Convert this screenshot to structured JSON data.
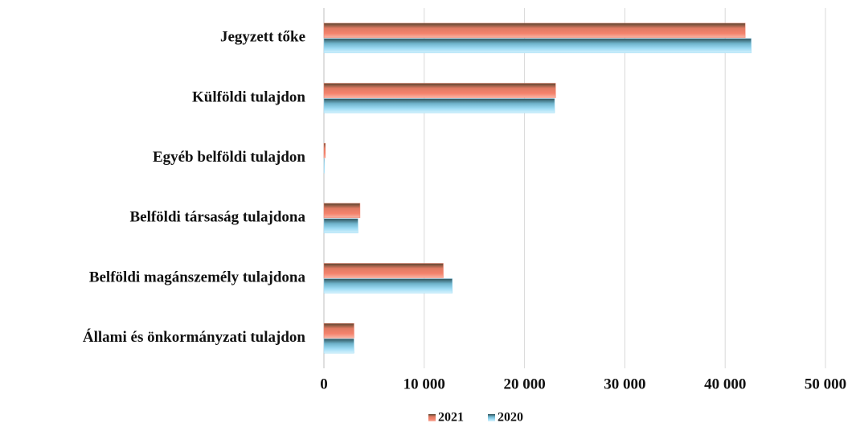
{
  "chart_data": {
    "type": "hbar",
    "categories": [
      "Jegyzett tőke",
      "Külföldi tulajdon",
      "Egyéb belföldi tulajdon",
      "Belföldi társaság tulajdona",
      "Belföldi magánszemély tulajdona",
      "Állami és önkormányzati tulajdon"
    ],
    "series": [
      {
        "name": "2021",
        "color": "#f4826c",
        "values": [
          42000,
          23100,
          150,
          3600,
          11900,
          3000
        ]
      },
      {
        "name": "2020",
        "color": "#9fdcf5",
        "values": [
          42600,
          23000,
          50,
          3400,
          12800,
          3000
        ]
      }
    ],
    "xlim": [
      0,
      50000
    ],
    "xticks": [
      0,
      {
        "value": 10000,
        "label": "10 000"
      },
      {
        "value": 20000,
        "label": "20 000"
      },
      {
        "value": 30000,
        "label": "30 000"
      },
      {
        "value": 40000,
        "label": "40 000"
      },
      {
        "value": 50000,
        "label": "50 000"
      }
    ],
    "grid": true,
    "legend": "bottom"
  }
}
